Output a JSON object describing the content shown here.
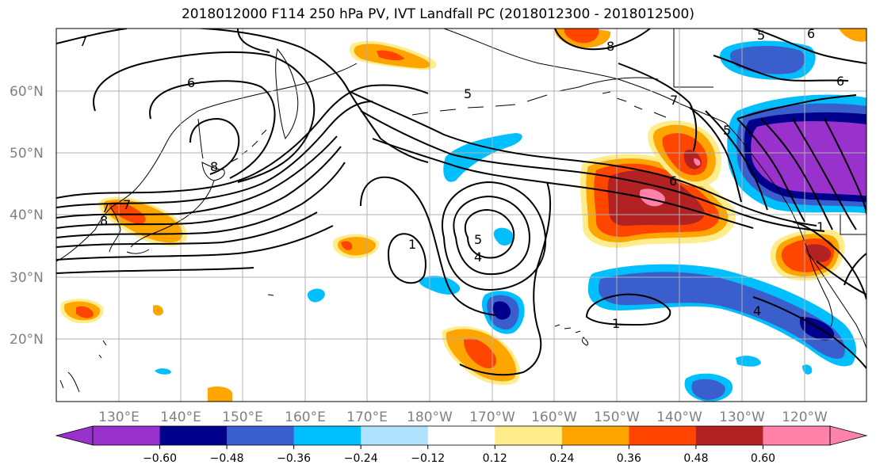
{
  "title": "2018012000 F114 250 hPa PV, IVT Landfall PC (2018012300 - 2018012500)",
  "lat_labels": [
    "60°N",
    "50°N",
    "40°N",
    "30°N",
    "20°N"
  ],
  "lon_labels": [
    "130°E",
    "140°E",
    "150°E",
    "160°E",
    "170°E",
    "180°W",
    "170°W",
    "160°W",
    "150°W",
    "140°W",
    "130°W",
    "120°W"
  ],
  "colorbar": {
    "colors": [
      "#9932cc",
      "#00008b",
      "#3a5fcd",
      "#00bfff",
      "#b0e2ff",
      "#ffffff",
      "#ffec8b",
      "#ffa500",
      "#ff4500",
      "#b22222",
      "#ff82ab"
    ],
    "tick_labels": [
      "−0.60",
      "−0.48",
      "−0.36",
      "−0.24",
      "−0.12",
      "0.12",
      "0.24",
      "0.36",
      "0.48",
      "0.60"
    ]
  },
  "contour_labels": [
    "7",
    "6",
    "8",
    "5",
    "7",
    "8",
    "7",
    "6",
    "4",
    "5",
    "6",
    "6",
    "7",
    "8",
    "5",
    "4",
    "1",
    "1",
    "1",
    "5"
  ]
}
